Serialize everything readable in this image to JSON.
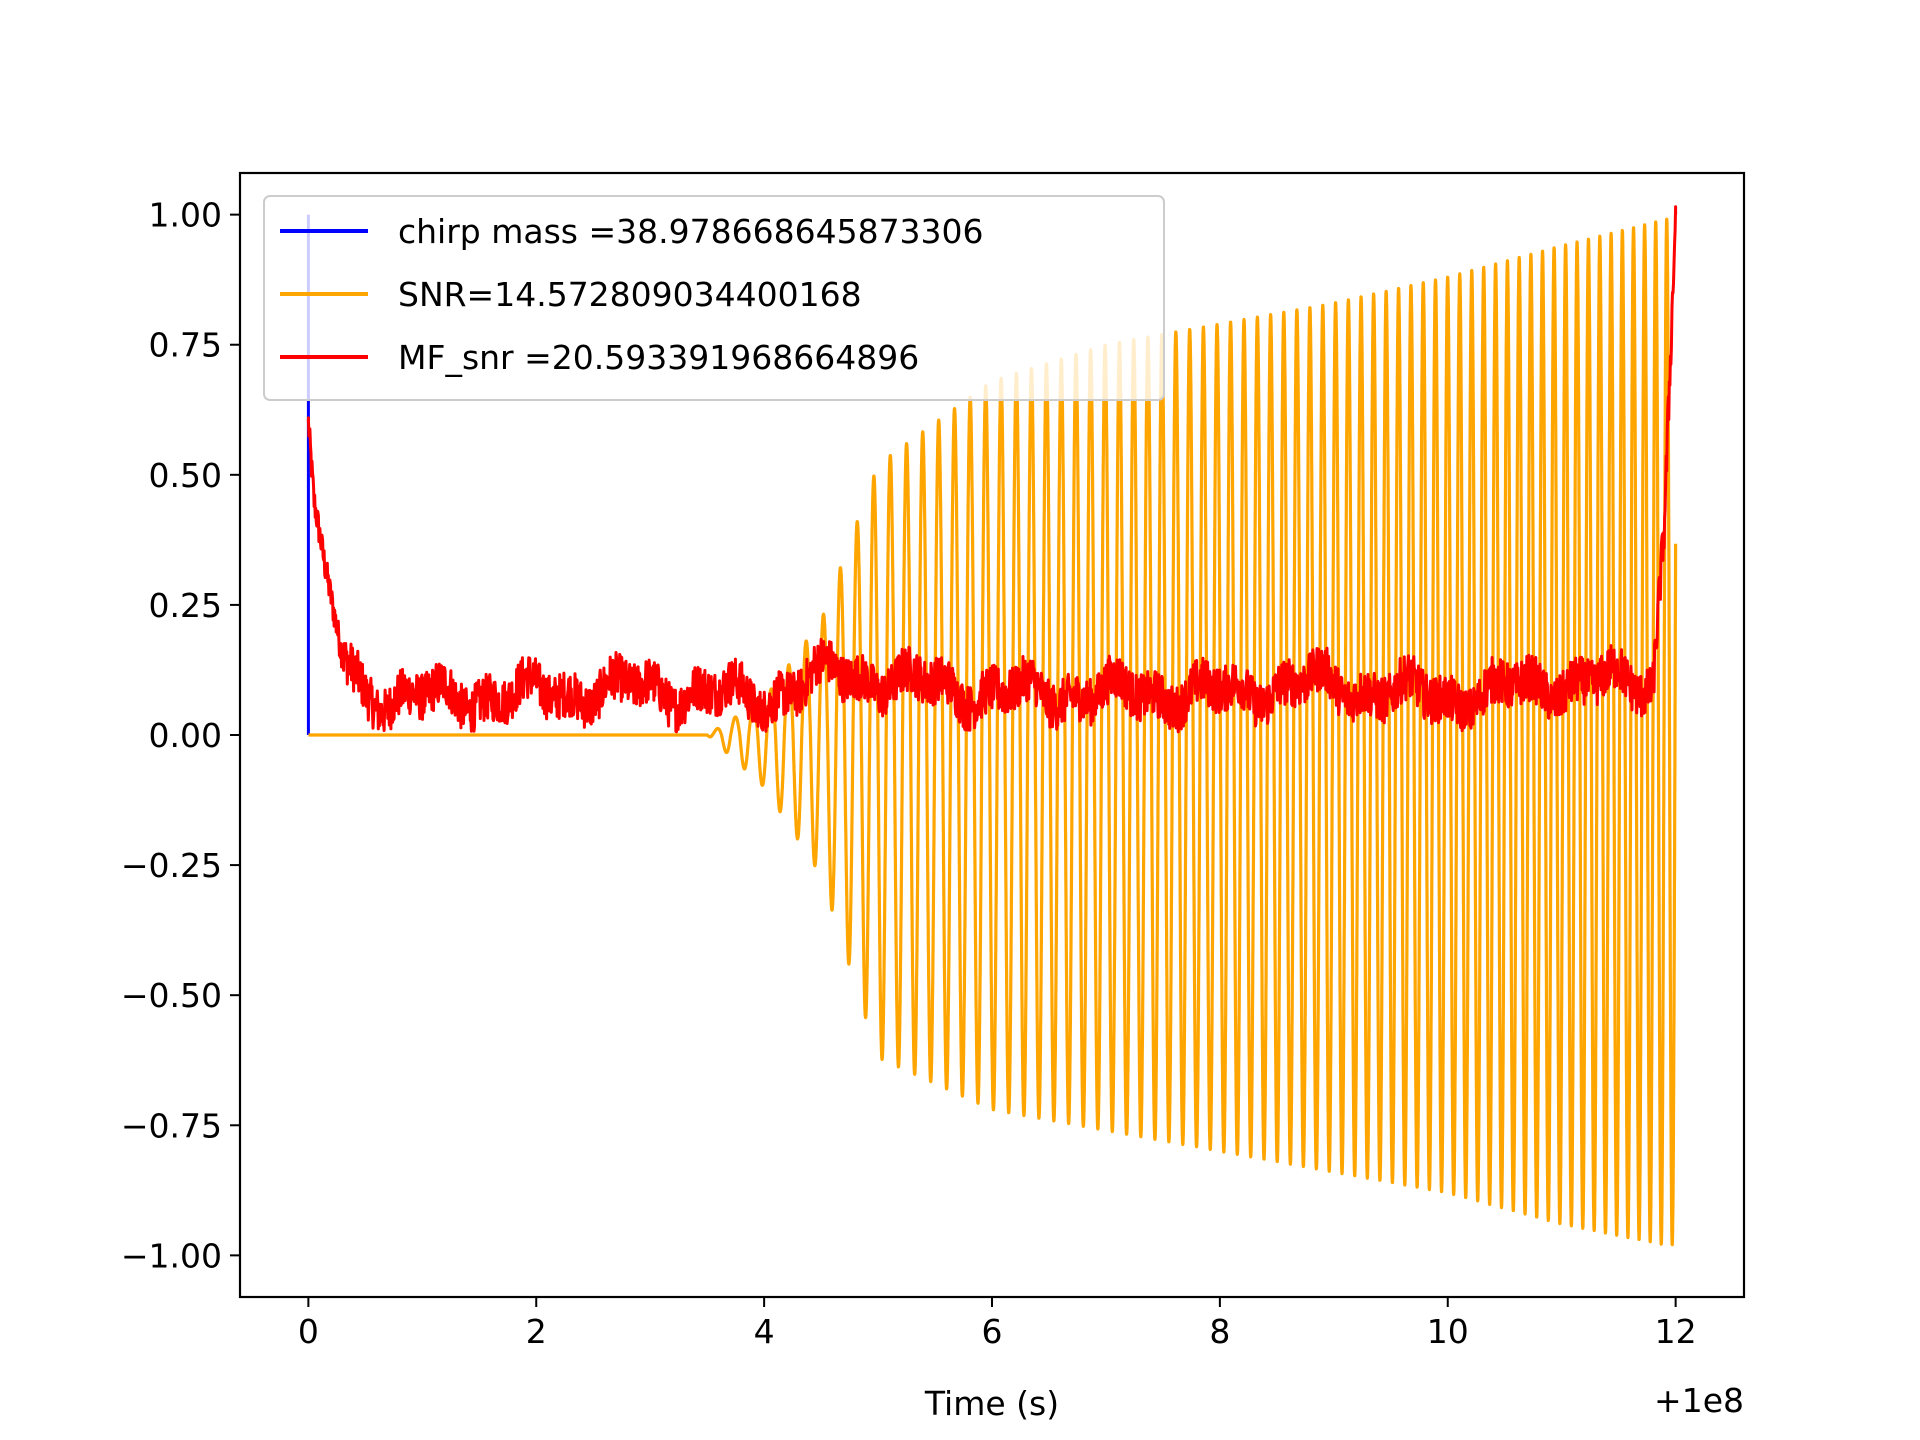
{
  "chart_data": {
    "type": "line",
    "xlabel": "Time (s)",
    "ylabel": "",
    "title": "",
    "x_offset_label": "+1e8",
    "xlim": [
      -0.6,
      12.6
    ],
    "ylim": [
      -1.08,
      1.08
    ],
    "xticks": [
      0,
      2,
      4,
      6,
      8,
      10,
      12
    ],
    "xtick_labels": [
      "0",
      "2",
      "4",
      "6",
      "8",
      "10",
      "12"
    ],
    "yticks": [
      1.0,
      0.75,
      0.5,
      0.25,
      0.0,
      -0.25,
      -0.5,
      -0.75,
      -1.0
    ],
    "ytick_labels": [
      "1.00",
      "0.75",
      "0.50",
      "0.25",
      "0.00",
      "−0.25",
      "−0.50",
      "−0.75",
      "−1.00"
    ],
    "grid": false,
    "legend_position": "upper-left",
    "legend": [
      {
        "label": "chirp mass =38.978668645873306",
        "color": "#0000ff"
      },
      {
        "label": "SNR=14.572809034400168",
        "color": "#ffa500"
      },
      {
        "label": "MF_snr =20.593391968664896",
        "color": "#ff0000"
      }
    ],
    "series": [
      {
        "name": "chirp mass =38.978668645873306",
        "color": "#0000ff",
        "description": "impulse at t=0",
        "x": [
          0.0,
          0.0,
          0.0
        ],
        "y": [
          0.0,
          1.0,
          0.0
        ]
      },
      {
        "name": "SNR=14.572809034400168",
        "color": "#ffa500",
        "description": "chirp waveform: zero until ~3.5 s, oscillation growing in amplitude and frequency to ~12 s",
        "x": [
          0,
          3.5,
          4.0,
          4.5,
          5.0,
          6.0,
          7.0,
          8.0,
          9.0,
          10.0,
          11.0,
          11.9,
          12.0
        ],
        "upper_envelope": [
          0,
          0,
          0.07,
          0.22,
          0.52,
          0.68,
          0.75,
          0.79,
          0.83,
          0.88,
          0.94,
          0.99,
          1.0
        ],
        "lower_envelope": [
          0,
          0,
          -0.1,
          -0.27,
          -0.62,
          -0.72,
          -0.76,
          -0.8,
          -0.84,
          -0.88,
          -0.94,
          -0.98,
          -0.98
        ]
      },
      {
        "name": "MF_snr =20.593391968664896",
        "color": "#ff0000",
        "description": "noisy matched-filter SNR: spike at 0, decays to ~0.07 baseline, spike to 1.0 at 12 s",
        "x": [
          0.0,
          0.05,
          0.15,
          0.3,
          0.5,
          1.0,
          2.0,
          3.0,
          4.0,
          4.6,
          6.0,
          8.0,
          8.8,
          10.0,
          11.0,
          11.8,
          11.9,
          12.0
        ],
        "y": [
          0.6,
          0.45,
          0.32,
          0.15,
          0.08,
          0.07,
          0.08,
          0.09,
          0.07,
          0.12,
          0.08,
          0.08,
          0.1,
          0.07,
          0.1,
          0.1,
          0.4,
          1.0
        ]
      }
    ]
  }
}
